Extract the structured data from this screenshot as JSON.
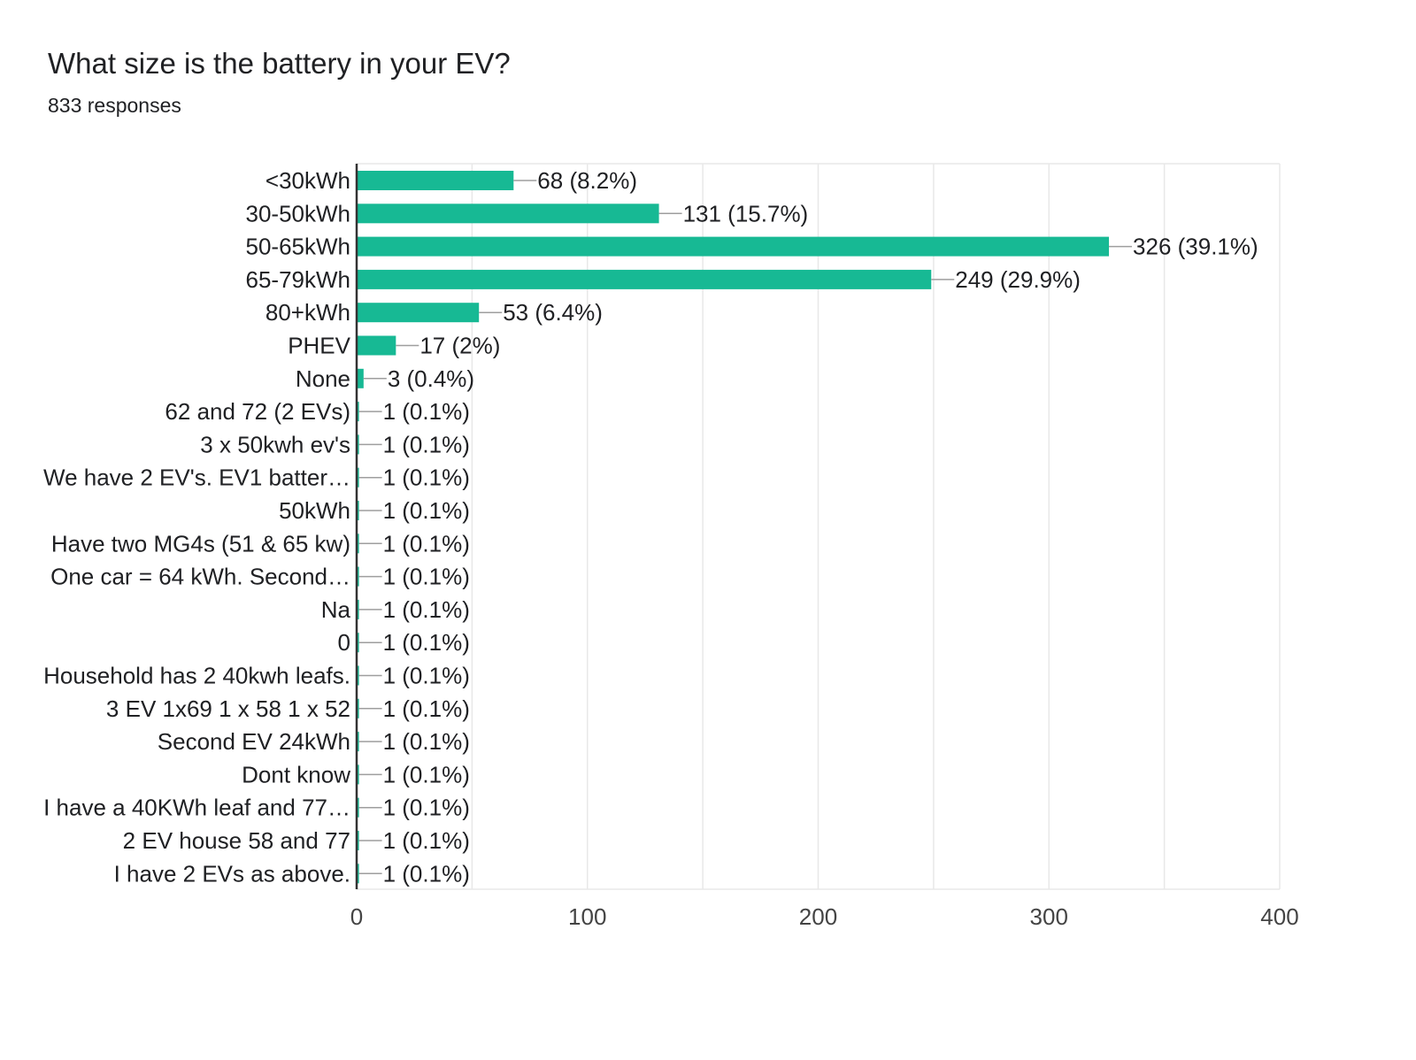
{
  "header": {
    "title": "What size is the battery in your EV?",
    "subtitle": "833 responses"
  },
  "colors": {
    "bar": "#17b994",
    "grid": "#e8e8e8",
    "axis": "#333333",
    "leader": "#9e9e9e",
    "text": "#202124",
    "tick_text": "#444444"
  },
  "chart_data": {
    "type": "bar",
    "orientation": "horizontal",
    "categories": [
      "<30kWh",
      "30-50kWh",
      "50-65kWh",
      "65-79kWh",
      "80+kWh",
      "PHEV",
      "None",
      "62 and 72 (2 EVs)",
      "3 x 50kwh ev's",
      "We have 2 EV's. EV1 batter…",
      "50kWh",
      "Have two MG4s (51 & 65 kw)",
      "One car = 64 kWh. Second…",
      "Na",
      "0",
      "Household has 2 40kwh leafs.",
      "3 EV 1x69 1 x 58 1 x 52",
      "Second EV 24kWh",
      "Dont know",
      "I have a 40KWh leaf and 77…",
      "2 EV house 58 and 77",
      "I have 2 EVs as above."
    ],
    "values": [
      68,
      131,
      326,
      249,
      53,
      17,
      3,
      1,
      1,
      1,
      1,
      1,
      1,
      1,
      1,
      1,
      1,
      1,
      1,
      1,
      1,
      1
    ],
    "data_labels": [
      "68 (8.2%)",
      "131 (15.7%)",
      "326 (39.1%)",
      "249 (29.9%)",
      "53 (6.4%)",
      "17 (2%)",
      "3 (0.4%)",
      "1 (0.1%)",
      "1 (0.1%)",
      "1 (0.1%)",
      "1 (0.1%)",
      "1 (0.1%)",
      "1 (0.1%)",
      "1 (0.1%)",
      "1 (0.1%)",
      "1 (0.1%)",
      "1 (0.1%)",
      "1 (0.1%)",
      "1 (0.1%)",
      "1 (0.1%)",
      "1 (0.1%)",
      "1 (0.1%)"
    ],
    "xlim": [
      0,
      400
    ],
    "xticks": [
      0,
      100,
      200,
      300,
      400
    ],
    "grid": true,
    "legend": "none"
  }
}
